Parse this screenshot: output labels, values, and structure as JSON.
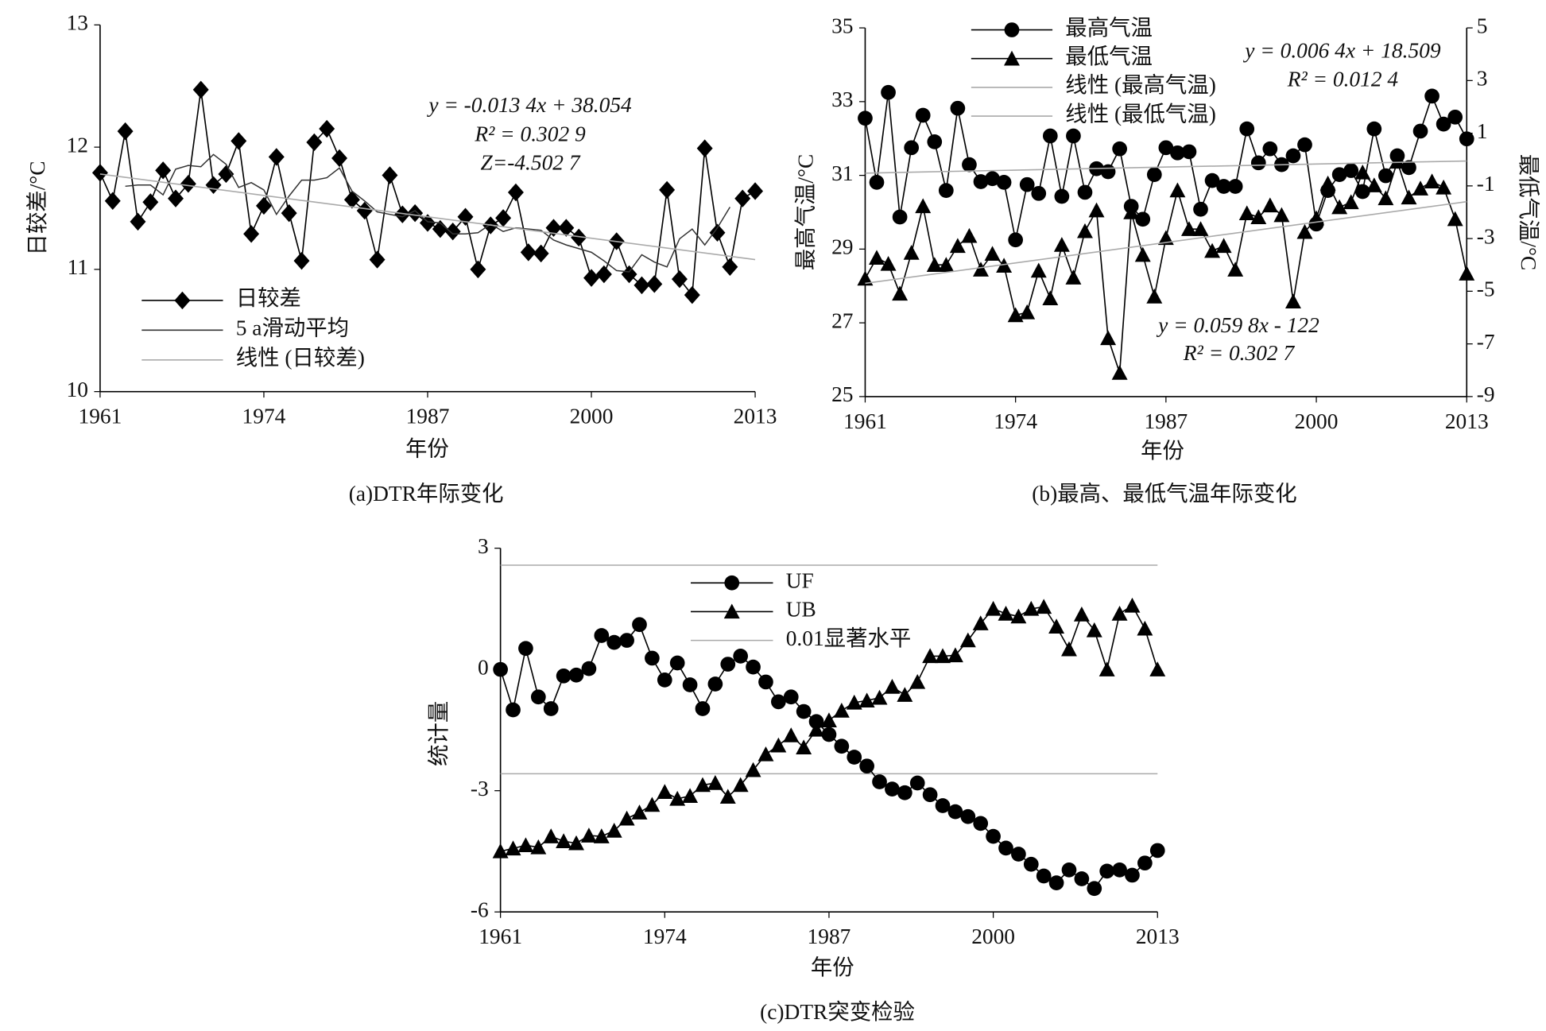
{
  "chart_data": [
    {
      "type": "line",
      "caption": "(a)DTR年际变化",
      "xlabel": "年份",
      "ylabel": "日较差/°C",
      "annotations": [
        "y = -0.013 4x + 38.054",
        "R² = 0.302 9",
        "Z=-4.502 7"
      ],
      "x": [
        1961,
        1962,
        1963,
        1964,
        1965,
        1966,
        1967,
        1968,
        1969,
        1970,
        1971,
        1972,
        1973,
        1974,
        1975,
        1976,
        1977,
        1978,
        1979,
        1980,
        1981,
        1982,
        1983,
        1984,
        1985,
        1986,
        1987,
        1988,
        1989,
        1990,
        1991,
        1992,
        1993,
        1994,
        1995,
        1996,
        1997,
        1998,
        1999,
        2000,
        2001,
        2002,
        2003,
        2004,
        2005,
        2006,
        2007,
        2008,
        2009,
        2010,
        2011,
        2012,
        2013
      ],
      "xlim": [
        1961,
        2013
      ],
      "xticks": [
        1961,
        1974,
        1987,
        2000,
        2013
      ],
      "ylim": [
        10,
        13
      ],
      "yticks": [
        10,
        11,
        12,
        13
      ],
      "series": [
        {
          "name": "日较差",
          "color": "#000000",
          "marker": "diamond",
          "values": [
            11.79,
            11.56,
            12.13,
            11.39,
            11.55,
            11.81,
            11.58,
            11.7,
            12.47,
            11.69,
            11.78,
            12.05,
            11.29,
            11.52,
            11.92,
            11.46,
            11.07,
            12.04,
            12.15,
            11.91,
            11.57,
            11.48,
            11.08,
            11.77,
            11.45,
            11.46,
            11.38,
            11.33,
            11.31,
            11.43,
            11.0,
            11.36,
            11.42,
            11.63,
            11.14,
            11.13,
            11.34,
            11.34,
            11.26,
            10.93,
            10.96,
            11.23,
            10.96,
            10.87,
            10.88,
            11.65,
            10.92,
            10.79,
            11.99,
            11.3,
            11.02,
            11.58,
            11.64
          ]
        },
        {
          "name": "5 a滑动平均",
          "color": "#333333",
          "marker": "none",
          "values": [
            null,
            null,
            11.68,
            11.69,
            11.69,
            11.61,
            11.82,
            11.85,
            11.84,
            11.94,
            11.86,
            11.67,
            11.71,
            11.65,
            11.45,
            11.6,
            11.73,
            11.73,
            11.75,
            11.83,
            11.64,
            11.56,
            11.47,
            11.45,
            11.43,
            11.48,
            11.39,
            11.38,
            11.29,
            11.29,
            11.3,
            11.37,
            11.31,
            11.34,
            11.33,
            11.32,
            11.24,
            11.2,
            11.17,
            11.14,
            11.07,
            10.99,
            10.98,
            11.12,
            11.06,
            11.02,
            11.25,
            11.33,
            11.2,
            11.34,
            11.51,
            null,
            null
          ]
        },
        {
          "name": "线性 (日较差)",
          "color": "#aaaaaa",
          "marker": "none",
          "x": [
            1961,
            2013
          ],
          "values": [
            11.78,
            11.08
          ]
        }
      ]
    },
    {
      "type": "line",
      "caption": "(b)最高、最低气温年际变化",
      "xlabel": "年份",
      "ylabel": "最高气温/°C",
      "y2label": "最低气温/°C",
      "annotations": [
        "y = 0.006 4x + 18.509",
        "R² = 0.012 4",
        "y = 0.059 8x - 122",
        "R² = 0.302 7"
      ],
      "x": [
        1961,
        1962,
        1963,
        1964,
        1965,
        1966,
        1967,
        1968,
        1969,
        1970,
        1971,
        1972,
        1973,
        1974,
        1975,
        1976,
        1977,
        1978,
        1979,
        1980,
        1981,
        1982,
        1983,
        1984,
        1985,
        1986,
        1987,
        1988,
        1989,
        1990,
        1991,
        1992,
        1993,
        1994,
        1995,
        1996,
        1997,
        1998,
        1999,
        2000,
        2001,
        2002,
        2003,
        2004,
        2005,
        2006,
        2007,
        2008,
        2009,
        2010,
        2011,
        2012,
        2013
      ],
      "xlim": [
        1961,
        2013
      ],
      "xticks": [
        1961,
        1974,
        1987,
        2000,
        2013
      ],
      "ylim": [
        25,
        35
      ],
      "yticks": [
        25,
        27,
        29,
        31,
        33,
        35
      ],
      "y2lim": [
        -9,
        5
      ],
      "y2ticks": [
        -9,
        -7,
        -5,
        -3,
        -1,
        1,
        3,
        5
      ],
      "series": [
        {
          "name": "最高气温",
          "color": "#000000",
          "marker": "circle",
          "values": [
            32.55,
            30.81,
            33.25,
            29.87,
            31.75,
            32.63,
            31.91,
            30.59,
            32.82,
            31.29,
            30.83,
            30.91,
            30.81,
            29.25,
            30.75,
            30.51,
            32.07,
            30.43,
            32.07,
            30.54,
            31.18,
            31.1,
            31.72,
            30.16,
            29.81,
            31.02,
            31.75,
            31.61,
            31.64,
            30.08,
            30.86,
            30.7,
            30.7,
            32.26,
            31.34,
            31.72,
            31.29,
            31.53,
            31.83,
            29.68,
            30.59,
            31.02,
            31.13,
            30.56,
            32.26,
            30.99,
            31.53,
            31.21,
            32.2,
            33.15,
            32.39,
            32.58,
            31.99
          ]
        },
        {
          "name": "最低气温",
          "color": "#000000",
          "marker": "triangle",
          "axis": "y2",
          "values": [
            -4.52,
            -3.73,
            -3.96,
            -5.09,
            -3.54,
            -1.77,
            -4.0,
            -4.0,
            -3.28,
            -2.9,
            -4.18,
            -3.58,
            -4.03,
            -5.91,
            -5.8,
            -4.22,
            -5.27,
            -3.24,
            -4.48,
            -2.72,
            -1.93,
            -6.78,
            -8.1,
            -2.0,
            -3.62,
            -5.2,
            -2.98,
            -1.17,
            -2.64,
            -2.64,
            -3.47,
            -3.28,
            -4.18,
            -2.04,
            -2.19,
            -1.74,
            -2.11,
            -5.39,
            -2.75,
            -2.23,
            -0.91,
            -1.81,
            -1.62,
            -0.49,
            -0.98,
            -1.47,
            -0.08,
            -1.44,
            -1.1,
            -0.83,
            -1.06,
            -2.26,
            -4.33
          ]
        },
        {
          "name": "线性 (最高气温)",
          "color": "#aaaaaa",
          "marker": "none",
          "x": [
            1961,
            2013
          ],
          "values": [
            31.06,
            31.39
          ]
        },
        {
          "name": "线性 (最低气温)",
          "color": "#aaaaaa",
          "marker": "none",
          "axis": "y2",
          "x": [
            1961,
            2013
          ],
          "values": [
            -4.7,
            -1.6
          ]
        }
      ]
    },
    {
      "type": "line",
      "caption": "(c)DTR突变检验",
      "xlabel": "年份",
      "ylabel": "统计量",
      "annotations": [],
      "x": [
        1961,
        1962,
        1963,
        1964,
        1965,
        1966,
        1967,
        1968,
        1969,
        1970,
        1971,
        1972,
        1973,
        1974,
        1975,
        1976,
        1977,
        1978,
        1979,
        1980,
        1981,
        1982,
        1983,
        1984,
        1985,
        1986,
        1987,
        1988,
        1989,
        1990,
        1991,
        1992,
        1993,
        1994,
        1995,
        1996,
        1997,
        1998,
        1999,
        2000,
        2001,
        2002,
        2003,
        2004,
        2005,
        2006,
        2007,
        2008,
        2009,
        2010,
        2011,
        2012,
        2013
      ],
      "xlim": [
        1961,
        2013
      ],
      "xticks": [
        1961,
        1974,
        1987,
        2000,
        2013
      ],
      "ylim": [
        -6,
        3
      ],
      "yticks": [
        -6,
        -3,
        0,
        3
      ],
      "threshold": {
        "name": "0.01显著水平",
        "color": "#aaaaaa",
        "values": [
          2.58,
          -2.58
        ]
      },
      "series": [
        {
          "name": "UF",
          "color": "#000000",
          "marker": "circle",
          "values": [
            0,
            -1.0,
            0.52,
            -0.68,
            -0.97,
            -0.16,
            -0.14,
            0.02,
            0.84,
            0.67,
            0.72,
            1.11,
            0.28,
            -0.26,
            0.16,
            -0.38,
            -0.97,
            -0.36,
            0.13,
            0.33,
            0.06,
            -0.31,
            -0.8,
            -0.68,
            -1.04,
            -1.29,
            -1.61,
            -1.9,
            -2.17,
            -2.39,
            -2.78,
            -2.96,
            -3.05,
            -2.81,
            -3.1,
            -3.37,
            -3.52,
            -3.64,
            -3.81,
            -4.13,
            -4.42,
            -4.57,
            -4.82,
            -5.11,
            -5.28,
            -4.96,
            -5.18,
            -5.42,
            -4.99,
            -4.96,
            -5.09,
            -4.79,
            -4.48
          ]
        },
        {
          "name": "UB",
          "color": "#000000",
          "marker": "triangle",
          "values": [
            -4.5,
            -4.43,
            -4.35,
            -4.4,
            -4.13,
            -4.25,
            -4.3,
            -4.11,
            -4.13,
            -3.99,
            -3.69,
            -3.54,
            -3.35,
            -3.03,
            -3.2,
            -3.13,
            -2.86,
            -2.81,
            -3.15,
            -2.86,
            -2.49,
            -2.1,
            -1.88,
            -1.63,
            -1.93,
            -1.49,
            -1.26,
            -1.02,
            -0.82,
            -0.77,
            -0.7,
            -0.43,
            -0.63,
            -0.31,
            0.33,
            0.33,
            0.35,
            0.72,
            1.14,
            1.5,
            1.38,
            1.31,
            1.5,
            1.55,
            1.06,
            0.5,
            1.36,
            0.97,
            0,
            1.38,
            1.58,
            1.01,
            0
          ]
        }
      ]
    }
  ]
}
